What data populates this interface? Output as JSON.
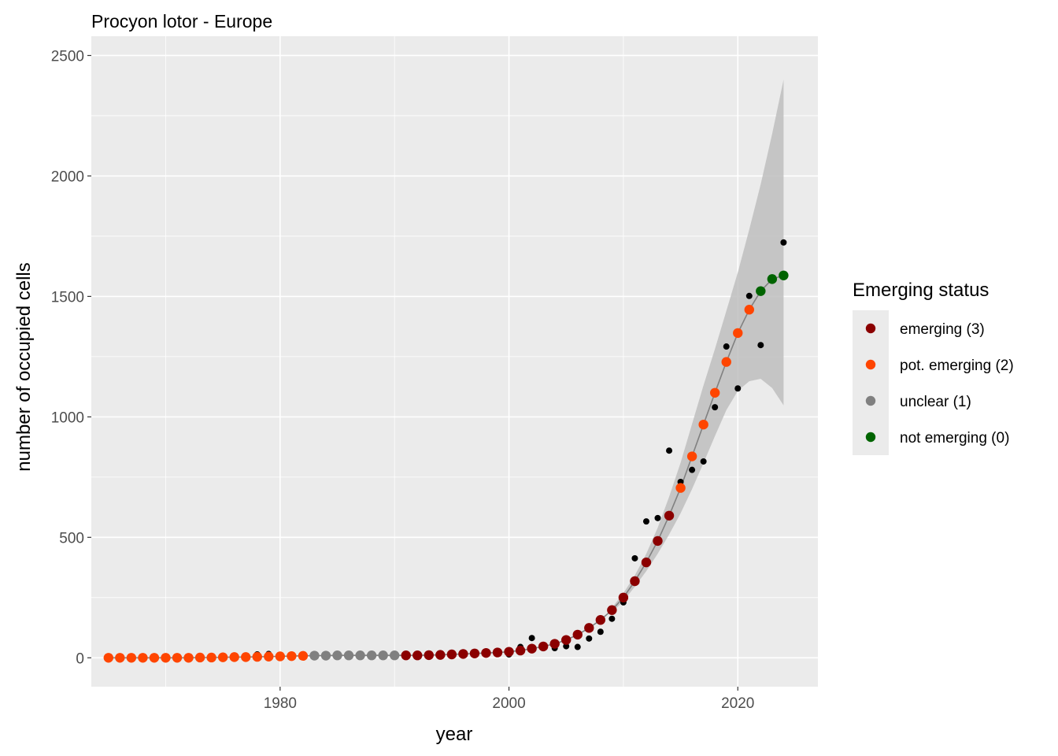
{
  "chart_data": {
    "type": "scatter",
    "title": "Procyon lotor - Europe",
    "xlabel": "year",
    "ylabel": "number of occupied cells",
    "xlim": [
      1963.5,
      2027
    ],
    "ylim": [
      -120,
      2580
    ],
    "x_ticks": [
      1980,
      2000,
      2020
    ],
    "x_tick_labels": [
      "1980",
      "2000",
      "2020"
    ],
    "y_ticks": [
      0,
      500,
      1000,
      1500,
      2000,
      2500
    ],
    "y_tick_labels": [
      "0",
      "500",
      "1000",
      "1500",
      "2000",
      "2500"
    ],
    "grid": true,
    "legend": {
      "title": "Emerging status",
      "position": "right",
      "items": [
        {
          "label": "emerging (3)",
          "color": "#8B0000"
        },
        {
          "label": "pot. emerging (2)",
          "color": "#FF4500"
        },
        {
          "label": "unclear (1)",
          "color": "#808080"
        },
        {
          "label": "not emerging (0)",
          "color": "#006400"
        }
      ]
    },
    "observed": {
      "name": "observed",
      "color": "#000000",
      "points": [
        [
          1978,
          14
        ],
        [
          1979,
          16
        ],
        [
          1989,
          14
        ],
        [
          2000,
          14
        ],
        [
          2001,
          45
        ],
        [
          2002,
          82
        ],
        [
          2004,
          40
        ],
        [
          2005,
          48
        ],
        [
          2006,
          45
        ],
        [
          2007,
          80
        ],
        [
          2008,
          108
        ],
        [
          2009,
          162
        ],
        [
          2010,
          230
        ],
        [
          2011,
          413
        ],
        [
          2012,
          566
        ],
        [
          2013,
          580
        ],
        [
          2014,
          860
        ],
        [
          2015,
          730
        ],
        [
          2016,
          780
        ],
        [
          2017,
          815
        ],
        [
          2018,
          1040
        ],
        [
          2019,
          1292
        ],
        [
          2020,
          1118
        ],
        [
          2021,
          1502
        ],
        [
          2022,
          1298
        ],
        [
          2024,
          1724
        ]
      ]
    },
    "fitted": {
      "color": "#808080",
      "points": [
        [
          1965,
          0,
          2
        ],
        [
          1966,
          0,
          2
        ],
        [
          1967,
          0,
          2
        ],
        [
          1968,
          0,
          2
        ],
        [
          1969,
          0,
          2
        ],
        [
          1970,
          0,
          2
        ],
        [
          1971,
          0,
          2
        ],
        [
          1972,
          0,
          2
        ],
        [
          1973,
          1,
          2
        ],
        [
          1974,
          1,
          2
        ],
        [
          1975,
          2,
          2
        ],
        [
          1976,
          3,
          2
        ],
        [
          1977,
          3,
          2
        ],
        [
          1978,
          4,
          2
        ],
        [
          1979,
          5,
          2
        ],
        [
          1980,
          6,
          2
        ],
        [
          1981,
          7,
          2
        ],
        [
          1982,
          8,
          2
        ],
        [
          1983,
          9,
          1
        ],
        [
          1984,
          9,
          1
        ],
        [
          1985,
          10,
          1
        ],
        [
          1986,
          10,
          1
        ],
        [
          1987,
          10,
          1
        ],
        [
          1988,
          10,
          1
        ],
        [
          1989,
          10,
          1
        ],
        [
          1990,
          10,
          1
        ],
        [
          1991,
          10,
          3
        ],
        [
          1992,
          10,
          3
        ],
        [
          1993,
          11,
          3
        ],
        [
          1994,
          12,
          3
        ],
        [
          1995,
          14,
          3
        ],
        [
          1996,
          16,
          3
        ],
        [
          1997,
          18,
          3
        ],
        [
          1998,
          20,
          3
        ],
        [
          1999,
          22,
          3
        ],
        [
          2000,
          25,
          3
        ],
        [
          2001,
          30,
          3
        ],
        [
          2002,
          38,
          3
        ],
        [
          2003,
          47,
          3
        ],
        [
          2004,
          58,
          3
        ],
        [
          2005,
          74,
          3
        ],
        [
          2006,
          96,
          3
        ],
        [
          2007,
          124,
          3
        ],
        [
          2008,
          157,
          3
        ],
        [
          2009,
          198,
          3
        ],
        [
          2010,
          250,
          3
        ],
        [
          2011,
          318,
          3
        ],
        [
          2012,
          396,
          3
        ],
        [
          2013,
          485,
          3
        ],
        [
          2014,
          590,
          3
        ],
        [
          2015,
          705,
          2
        ],
        [
          2016,
          836,
          2
        ],
        [
          2017,
          968,
          2
        ],
        [
          2018,
          1100,
          2
        ],
        [
          2019,
          1228,
          2
        ],
        [
          2020,
          1348,
          2
        ],
        [
          2021,
          1445,
          2
        ],
        [
          2022,
          1522,
          0
        ],
        [
          2023,
          1572,
          0
        ],
        [
          2024,
          1587,
          0
        ]
      ]
    },
    "confidence_band": {
      "color": "#BEBEBE",
      "points": [
        [
          2009,
          188,
          208
        ],
        [
          2010,
          235,
          268
        ],
        [
          2011,
          295,
          342
        ],
        [
          2012,
          360,
          432
        ],
        [
          2013,
          432,
          540
        ],
        [
          2014,
          512,
          668
        ],
        [
          2015,
          600,
          810
        ],
        [
          2016,
          700,
          970
        ],
        [
          2017,
          808,
          1130
        ],
        [
          2018,
          920,
          1282
        ],
        [
          2019,
          1028,
          1440
        ],
        [
          2020,
          1108,
          1600
        ],
        [
          2021,
          1148,
          1778
        ],
        [
          2022,
          1158,
          1965
        ],
        [
          2023,
          1120,
          2175
        ],
        [
          2024,
          1048,
          2400
        ]
      ]
    }
  }
}
